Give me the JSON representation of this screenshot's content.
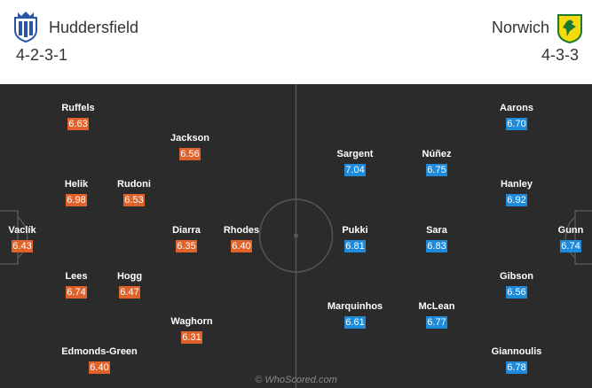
{
  "header": {
    "home": {
      "name": "Huddersfield",
      "formation": "4-2-3-1"
    },
    "away": {
      "name": "Norwich",
      "formation": "4-3-3"
    }
  },
  "colors": {
    "home_rating": "#e0622b",
    "away_rating": "#1f8ad9",
    "pitch": "#2b2b2b"
  },
  "icons": {
    "home_logo": "huddersfield-crest-icon",
    "away_logo": "norwich-crest-icon"
  },
  "home_players": [
    {
      "name": "Ruffels",
      "rating": "6.63"
    },
    {
      "name": "Jackson",
      "rating": "6.56"
    },
    {
      "name": "Helik",
      "rating": "6.98"
    },
    {
      "name": "Rudoni",
      "rating": "6.53"
    },
    {
      "name": "Vaclík",
      "rating": "6.43"
    },
    {
      "name": "Diarra",
      "rating": "6.35"
    },
    {
      "name": "Rhodes",
      "rating": "6.40"
    },
    {
      "name": "Lees",
      "rating": "6.74"
    },
    {
      "name": "Hogg",
      "rating": "6.47"
    },
    {
      "name": "Waghorn",
      "rating": "6.31"
    },
    {
      "name": "Edmonds-Green",
      "rating": "6.40"
    }
  ],
  "away_players": [
    {
      "name": "Aarons",
      "rating": "6.70"
    },
    {
      "name": "Sargent",
      "rating": "7.04"
    },
    {
      "name": "Núñez",
      "rating": "6.75"
    },
    {
      "name": "Hanley",
      "rating": "6.92"
    },
    {
      "name": "Pukki",
      "rating": "6.81"
    },
    {
      "name": "Sara",
      "rating": "6.83"
    },
    {
      "name": "Gunn",
      "rating": "6.74"
    },
    {
      "name": "Gibson",
      "rating": "6.56"
    },
    {
      "name": "Marquinhos",
      "rating": "6.61"
    },
    {
      "name": "McLean",
      "rating": "6.77"
    },
    {
      "name": "Giannoulis",
      "rating": "6.78"
    }
  ],
  "watermark": "© WhoScored.com"
}
